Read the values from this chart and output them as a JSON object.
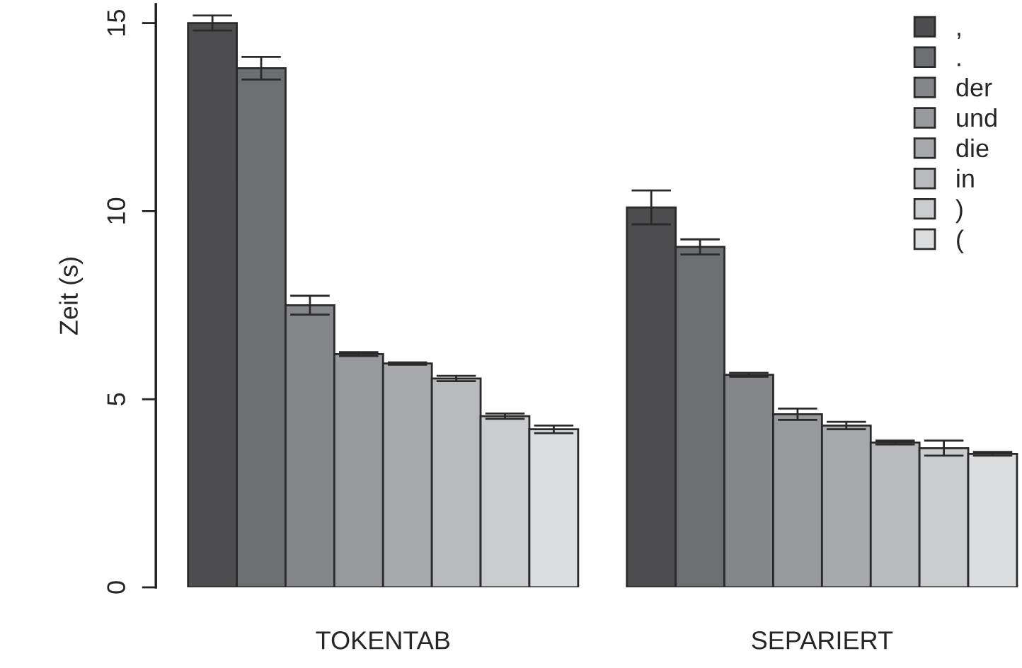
{
  "chart_data": {
    "type": "bar",
    "ylabel": "Zeit (s)",
    "categories": [
      "TOKENTAB",
      "SEPARIERT"
    ],
    "series": [
      {
        "name": ",",
        "color": "#4d4d4f",
        "values": [
          15.0,
          10.1
        ],
        "errors": [
          0.2,
          0.45
        ]
      },
      {
        "name": ".",
        "color": "#6d6e71",
        "values": [
          13.8,
          9.05
        ],
        "errors": [
          0.3,
          0.2
        ]
      },
      {
        "name": "der",
        "color": "#85868a",
        "values": [
          7.5,
          5.65
        ],
        "errors": [
          0.25,
          0.05
        ]
      },
      {
        "name": "und",
        "color": "#98999c",
        "values": [
          6.2,
          4.6
        ],
        "errors": [
          0.05,
          0.15
        ]
      },
      {
        "name": "die",
        "color": "#a7a8ab",
        "values": [
          5.95,
          4.3
        ],
        "errors": [
          0.03,
          0.1
        ]
      },
      {
        "name": "in",
        "color": "#b8b9bc",
        "values": [
          5.55,
          3.85
        ],
        "errors": [
          0.07,
          0.05
        ]
      },
      {
        "name": ")",
        "color": "#cbcccf",
        "values": [
          4.55,
          3.7
        ],
        "errors": [
          0.07,
          0.2
        ]
      },
      {
        "name": "(",
        "color": "#dcdddf",
        "values": [
          4.2,
          3.55
        ],
        "errors": [
          0.1,
          0.05
        ]
      }
    ],
    "ylim": [
      0,
      15.5
    ],
    "yticks": [
      0,
      5,
      10,
      15
    ],
    "grid": false,
    "legend": "top right"
  }
}
